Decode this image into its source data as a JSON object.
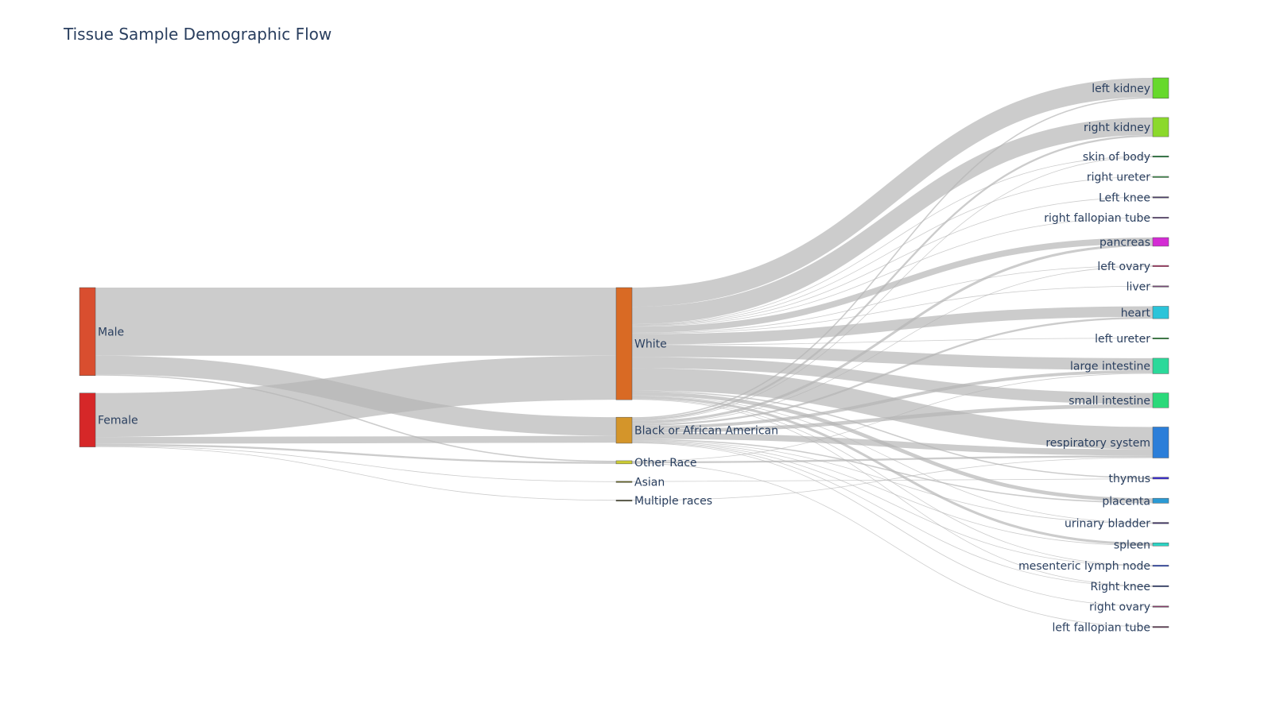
{
  "chart_data": {
    "type": "sankey",
    "title": "Tissue Sample Demographic Flow",
    "nodes": [
      {
        "id": "male",
        "label": "Male",
        "column": 0,
        "color": "#d94e2f"
      },
      {
        "id": "female",
        "label": "Female",
        "column": 0,
        "color": "#d62728"
      },
      {
        "id": "white",
        "label": "White",
        "column": 1,
        "color": "#d96a24"
      },
      {
        "id": "black",
        "label": "Black or African American",
        "column": 1,
        "color": "#d4952a"
      },
      {
        "id": "other",
        "label": "Other Race",
        "column": 1,
        "color": "#cccc33"
      },
      {
        "id": "asian",
        "label": "Asian",
        "column": 1,
        "color": "#6b6b1f"
      },
      {
        "id": "multi",
        "label": "Multiple races",
        "column": 1,
        "color": "#5a5a3a"
      },
      {
        "id": "lkid",
        "label": "left kidney",
        "column": 2,
        "color": "#66d92b"
      },
      {
        "id": "rkid",
        "label": "right kidney",
        "column": 2,
        "color": "#8bd92b"
      },
      {
        "id": "skin",
        "label": "skin of body",
        "column": 2,
        "color": "#1a8f3a"
      },
      {
        "id": "rur",
        "label": "right ureter",
        "column": 2,
        "color": "#3a9a4a"
      },
      {
        "id": "lknee",
        "label": "Left knee",
        "column": 2,
        "color": "#4a3a6a"
      },
      {
        "id": "rft",
        "label": "right fallopian tube",
        "column": 2,
        "color": "#6a4a8a"
      },
      {
        "id": "panc",
        "label": "pancreas",
        "column": 2,
        "color": "#d42bd4"
      },
      {
        "id": "lov",
        "label": "left ovary",
        "column": 2,
        "color": "#c0306a"
      },
      {
        "id": "liver",
        "label": "liver",
        "column": 2,
        "color": "#7a4a7a"
      },
      {
        "id": "heart",
        "label": "heart",
        "column": 2,
        "color": "#2bc4d9"
      },
      {
        "id": "lur",
        "label": "left ureter",
        "column": 2,
        "color": "#2a9a3a"
      },
      {
        "id": "lint",
        "label": "large intestine",
        "column": 2,
        "color": "#2bd99a"
      },
      {
        "id": "sint",
        "label": "small intestine",
        "column": 2,
        "color": "#2bd97a"
      },
      {
        "id": "resp",
        "label": "respiratory system",
        "column": 2,
        "color": "#2b7ed9"
      },
      {
        "id": "thym",
        "label": "thymus",
        "column": 2,
        "color": "#3a2bd4"
      },
      {
        "id": "plac",
        "label": "placenta",
        "column": 2,
        "color": "#2b9ad4"
      },
      {
        "id": "ubl",
        "label": "urinary bladder",
        "column": 2,
        "color": "#3a2a6a"
      },
      {
        "id": "spl",
        "label": "spleen",
        "column": 2,
        "color": "#2bd4c4"
      },
      {
        "id": "mln",
        "label": "mesenteric lymph node",
        "column": 2,
        "color": "#2b4ad4"
      },
      {
        "id": "rknee",
        "label": "Right knee",
        "column": 2,
        "color": "#3a4a8a"
      },
      {
        "id": "rov",
        "label": "right ovary",
        "column": 2,
        "color": "#8a3a6a"
      },
      {
        "id": "lft",
        "label": "left fallopian tube",
        "column": 2,
        "color": "#6a3a5a"
      }
    ],
    "links": [
      {
        "source": "male",
        "target": "white",
        "value": 110
      },
      {
        "source": "male",
        "target": "black",
        "value": 30
      },
      {
        "source": "male",
        "target": "other",
        "value": 2
      },
      {
        "source": "female",
        "target": "white",
        "value": 71
      },
      {
        "source": "female",
        "target": "black",
        "value": 11
      },
      {
        "source": "female",
        "target": "other",
        "value": 3
      },
      {
        "source": "female",
        "target": "asian",
        "value": 1
      },
      {
        "source": "female",
        "target": "multi",
        "value": 1
      },
      {
        "source": "white",
        "target": "lkid",
        "value": 31
      },
      {
        "source": "white",
        "target": "rkid",
        "value": 28
      },
      {
        "source": "white",
        "target": "skin",
        "value": 1
      },
      {
        "source": "white",
        "target": "rur",
        "value": 1
      },
      {
        "source": "white",
        "target": "lknee",
        "value": 1
      },
      {
        "source": "white",
        "target": "rft",
        "value": 1
      },
      {
        "source": "white",
        "target": "panc",
        "value": 10
      },
      {
        "source": "white",
        "target": "lov",
        "value": 1
      },
      {
        "source": "white",
        "target": "liver",
        "value": 1
      },
      {
        "source": "white",
        "target": "heart",
        "value": 17
      },
      {
        "source": "white",
        "target": "lur",
        "value": 1
      },
      {
        "source": "white",
        "target": "lint",
        "value": 19
      },
      {
        "source": "white",
        "target": "sint",
        "value": 18
      },
      {
        "source": "white",
        "target": "resp",
        "value": 36
      },
      {
        "source": "white",
        "target": "thym",
        "value": 2
      },
      {
        "source": "white",
        "target": "plac",
        "value": 6
      },
      {
        "source": "white",
        "target": "ubl",
        "value": 1
      },
      {
        "source": "white",
        "target": "spl",
        "value": 4
      },
      {
        "source": "white",
        "target": "mln",
        "value": 1
      },
      {
        "source": "white",
        "target": "rknee",
        "value": 1
      },
      {
        "source": "black",
        "target": "lkid",
        "value": 2
      },
      {
        "source": "black",
        "target": "rkid",
        "value": 3
      },
      {
        "source": "black",
        "target": "skin",
        "value": 1
      },
      {
        "source": "black",
        "target": "panc",
        "value": 4
      },
      {
        "source": "black",
        "target": "lov",
        "value": 1
      },
      {
        "source": "black",
        "target": "heart",
        "value": 3
      },
      {
        "source": "black",
        "target": "lint",
        "value": 5
      },
      {
        "source": "black",
        "target": "sint",
        "value": 6
      },
      {
        "source": "black",
        "target": "resp",
        "value": 10
      },
      {
        "source": "black",
        "target": "plac",
        "value": 2
      },
      {
        "source": "black",
        "target": "ubl",
        "value": 1
      },
      {
        "source": "black",
        "target": "spl",
        "value": 1
      },
      {
        "source": "black",
        "target": "mln",
        "value": 1
      },
      {
        "source": "black",
        "target": "rknee",
        "value": 1
      },
      {
        "source": "black",
        "target": "rov",
        "value": 1
      },
      {
        "source": "other",
        "target": "resp",
        "value": 3
      },
      {
        "source": "other",
        "target": "lint",
        "value": 1
      },
      {
        "source": "other",
        "target": "lft",
        "value": 1
      },
      {
        "source": "asian",
        "target": "thym",
        "value": 1
      },
      {
        "source": "multi",
        "target": "resp",
        "value": 1
      }
    ]
  }
}
